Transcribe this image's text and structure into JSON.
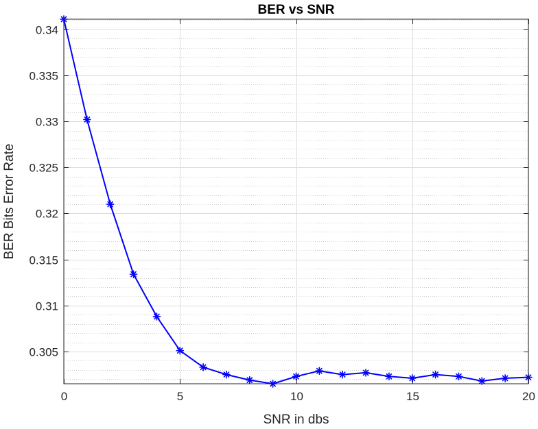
{
  "chart_data": {
    "type": "line",
    "title": "BER vs SNR",
    "xlabel": "SNR in dbs",
    "ylabel": "BER Bits Error Rate",
    "xlim": [
      0,
      20
    ],
    "ylim": [
      0.3015,
      0.3411
    ],
    "xticks": [
      "0",
      "5",
      "10",
      "15",
      "20"
    ],
    "xtick_values": [
      0,
      5,
      10,
      15,
      20
    ],
    "yticks": [
      "0.305",
      "0.31",
      "0.315",
      "0.32",
      "0.325",
      "0.33",
      "0.335",
      "0.34"
    ],
    "ytick_values": [
      0.305,
      0.31,
      0.315,
      0.32,
      0.325,
      0.33,
      0.335,
      0.34
    ],
    "grid": true,
    "minor_grid_y": true,
    "series": [
      {
        "color": "#0000ff",
        "marker": "asterisk",
        "x": [
          0,
          1,
          2,
          3,
          4,
          5,
          6,
          7,
          8,
          9,
          10,
          11,
          12,
          13,
          14,
          15,
          16,
          17,
          18,
          19,
          20
        ],
        "y": [
          0.3411,
          0.3302,
          0.321,
          0.3134,
          0.3088,
          0.3051,
          0.3033,
          0.3025,
          0.3019,
          0.3015,
          0.3023,
          0.3029,
          0.3025,
          0.3027,
          0.3023,
          0.3021,
          0.3025,
          0.3023,
          0.3018,
          0.3021,
          0.3022
        ]
      }
    ]
  }
}
